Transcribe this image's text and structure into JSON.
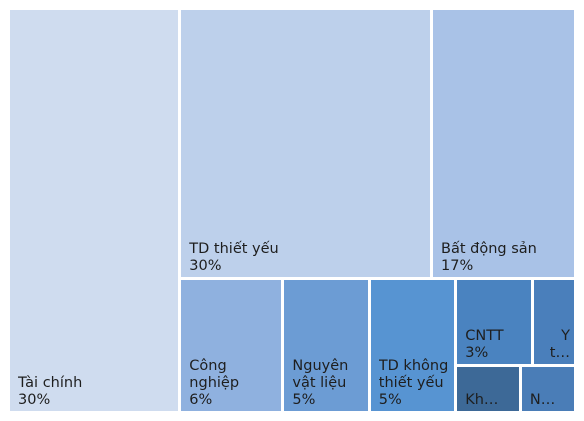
{
  "chart_data": {
    "type": "treemap",
    "categories": [
      "Tài chính",
      "TD thiết yếu",
      "Bất động sản",
      "Công nghiệp",
      "Nguyên vật liệu",
      "TD không thiết yếu",
      "CNTT",
      "Y t…",
      "Kh…",
      "N…"
    ],
    "values": [
      30,
      30,
      17,
      6,
      5,
      5,
      3,
      1.6,
      1.3,
      1.1
    ],
    "value_labels": [
      "30%",
      "30%",
      "17%",
      "6%",
      "5%",
      "5%",
      "3%",
      null,
      null,
      null
    ],
    "colors": [
      "#cfdcef",
      "#bdd0eb",
      "#a9c2e7",
      "#8fb1df",
      "#6c9cd4",
      "#5794d2",
      "#4a83c0",
      "#4a7fbb",
      "#3d6997",
      "#4a7db7"
    ]
  }
}
